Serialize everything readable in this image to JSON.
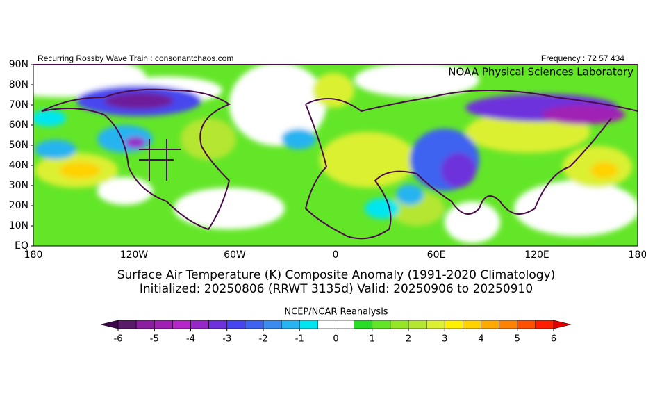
{
  "header": {
    "left": "Recurring Rossby Wave Train : consonantchaos.com",
    "right": "Frequency : 72 57 434"
  },
  "map": {
    "credit": "NOAA Physical Sciences Laboratory",
    "lat_labels": [
      "90N",
      "80N",
      "70N",
      "60N",
      "50N",
      "40N",
      "30N",
      "20N",
      "10N",
      "EQ"
    ],
    "lon_labels": [
      "180",
      "120W",
      "60W",
      "0",
      "60E",
      "120E",
      "180"
    ]
  },
  "title": {
    "line1": "Surface Air Temperature (K) Composite Anomaly (1991-2020 Climatology)",
    "line2": "Initialized: 20250806 (RRWT 3135d) Valid: 20250906 to 20250910"
  },
  "colorbar": {
    "label": "NCEP/NCAR Reanalysis",
    "ticks": [
      -6,
      -5,
      -4,
      -3,
      -2,
      -1,
      0,
      1,
      2,
      3,
      4,
      5,
      6
    ],
    "under_color": "#3c0a4a",
    "over_color": "#e00000",
    "colors": [
      "#5a1a6a",
      "#8c1fa0",
      "#a020b4",
      "#b428c8",
      "#9628c8",
      "#6e32dc",
      "#4646f0",
      "#3c64f0",
      "#3c8cf0",
      "#28b4f0",
      "#00e6f0",
      "#ffffff",
      "#ffffff",
      "#28dc28",
      "#64e628",
      "#96e628",
      "#b4e632",
      "#dcf032",
      "#fff000",
      "#ffd200",
      "#ffaa00",
      "#ff8200",
      "#ff5000",
      "#ff1e00"
    ]
  }
}
